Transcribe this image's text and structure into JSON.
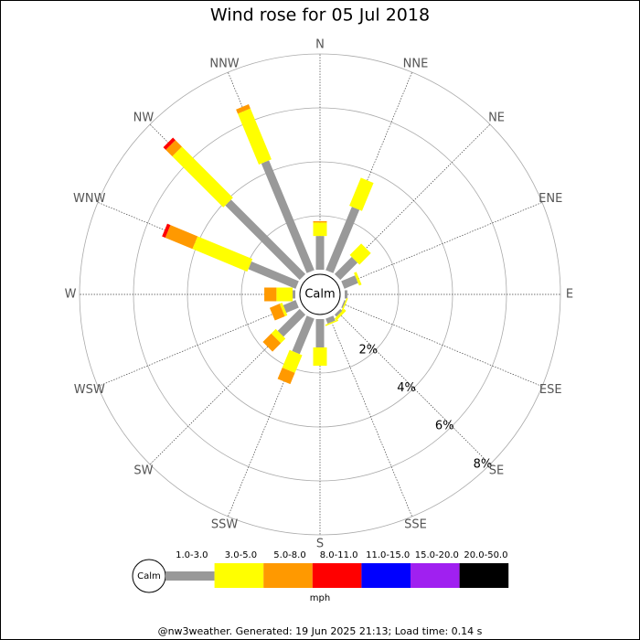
{
  "chart_data": {
    "type": "rose",
    "title": "Wind rose for 05 Jul 2018",
    "directions": [
      "N",
      "NNE",
      "NE",
      "ENE",
      "E",
      "ESE",
      "SE",
      "SSE",
      "S",
      "SSW",
      "SW",
      "WSW",
      "W",
      "WNW",
      "NW",
      "NNW"
    ],
    "calm_label": "Calm",
    "rlim": [
      0,
      8
    ],
    "rticks": [
      {
        "value": 2,
        "label": "2%"
      },
      {
        "value": 4,
        "label": "4%"
      },
      {
        "value": 6,
        "label": "6%"
      },
      {
        "value": 8,
        "label": "8%"
      }
    ],
    "series": [
      {
        "name": "1.0-3.0",
        "color": "#999999",
        "values": [
          1.25,
          2.54,
          0.9,
          0.55,
          0.1,
          0.05,
          0.1,
          0.2,
          1.05,
          1.42,
          1.15,
          0.5,
          0.1,
          1.9,
          3.9,
          4.4
        ]
      },
      {
        "name": "3.0-5.0",
        "color": "#ffff00",
        "values": [
          0.5,
          1.12,
          0.6,
          0.1,
          0,
          0.05,
          0.1,
          0.05,
          0.68,
          0.71,
          0.24,
          0.1,
          0.6,
          2.2,
          2.68,
          2.04
        ]
      },
      {
        "name": "5.0-8.0",
        "color": "#ff9900",
        "values": [
          0.05,
          0,
          0,
          0,
          0,
          0,
          0,
          0,
          0,
          0.45,
          0.44,
          0.4,
          0.45,
          1.09,
          0.34,
          0.17
        ]
      },
      {
        "name": "8.0-11.0",
        "color": "#ff0000",
        "values": [
          0,
          0,
          0,
          0,
          0,
          0,
          0,
          0,
          0,
          0,
          0,
          0,
          0,
          0.13,
          0.13,
          0
        ]
      },
      {
        "name": "11.0-15.0",
        "color": "#0000ff",
        "values": [
          0,
          0,
          0,
          0,
          0,
          0,
          0,
          0,
          0,
          0,
          0,
          0,
          0,
          0,
          0,
          0
        ]
      },
      {
        "name": "15.0-20.0",
        "color": "#a020f0",
        "values": [
          0,
          0,
          0,
          0,
          0,
          0,
          0,
          0,
          0,
          0,
          0,
          0,
          0,
          0,
          0,
          0
        ]
      },
      {
        "name": "20.0-50.0",
        "color": "#000000",
        "values": [
          0,
          0,
          0,
          0,
          0,
          0,
          0,
          0,
          0,
          0,
          0,
          0,
          0,
          0,
          0,
          0
        ]
      }
    ],
    "legend_unit": "mph",
    "footer": "@nw3weather. Generated: 19 Jun 2025 21:13; Load time: 0.14 s"
  }
}
